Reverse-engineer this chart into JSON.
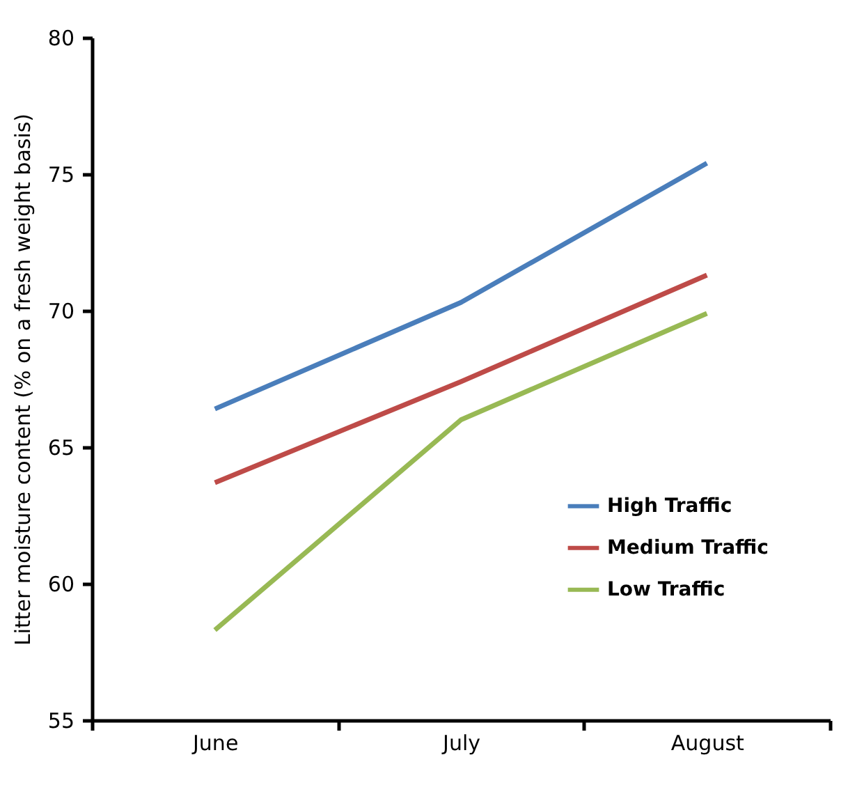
{
  "chart_data": {
    "type": "line",
    "ylabel": "Litter moisture content (% on a fresh weight basis)",
    "categories": [
      "June",
      "July",
      "August"
    ],
    "series": [
      {
        "name": "High Traffic",
        "color": "#4a7ebb",
        "values": [
          66.4,
          70.3,
          75.4
        ]
      },
      {
        "name": "Medium Traffic",
        "color": "#be4b48",
        "values": [
          63.7,
          67.4,
          71.3
        ]
      },
      {
        "name": "Low Traffic",
        "color": "#98b954",
        "values": [
          58.3,
          66.0,
          69.9
        ]
      }
    ],
    "ylim": [
      55,
      80
    ],
    "yticks": [
      55,
      60,
      65,
      70,
      75,
      80
    ],
    "grid": false,
    "legend": "right",
    "marker": "none",
    "line_style": "solid"
  }
}
